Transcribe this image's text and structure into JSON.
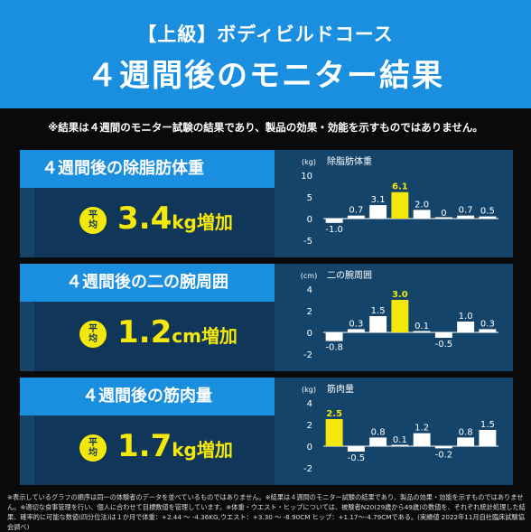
{
  "header": {
    "course": "【上級】ボディビルドコース",
    "title": "４週間後のモニター結果"
  },
  "disclaimer": "※結果は４週間のモニター試験の結果であり、製品の効果・効能を示すものではありません。",
  "avg_badge": {
    "line1": "平",
    "line2": "均"
  },
  "panels": [
    {
      "title": "４週間後の除脂肪体重",
      "avg_number": "3.4",
      "avg_unit": "kg",
      "avg_tail": "増加"
    },
    {
      "title": "４週間後の二の腕周囲",
      "avg_number": "1.2",
      "avg_unit": "cm",
      "avg_tail": "増加"
    },
    {
      "title": "４週間後の筋肉量",
      "avg_number": "1.7",
      "avg_unit": "kg",
      "avg_tail": "増加"
    }
  ],
  "colors": {
    "header_blue": "#1a8fe0",
    "panel_dark": "#14446a",
    "highlight_yellow": "#f4e80a",
    "bar_white": "#ffffff"
  },
  "chart_data": [
    {
      "type": "bar",
      "title": "除脂肪体重",
      "unit": "(kg)",
      "yticks": [
        "10",
        "5",
        "0",
        "-5"
      ],
      "ylim": [
        -5,
        10
      ],
      "values": [
        -1.0,
        0.7,
        3.1,
        6.1,
        2.0,
        0,
        0.7,
        0.5
      ],
      "labels": [
        "-1.0",
        "0.7",
        "3.1",
        "6.1",
        "2.0",
        "0",
        "0.7",
        "0.5"
      ],
      "highlight_index": 3
    },
    {
      "type": "bar",
      "title": "二の腕周囲",
      "unit": "(cm)",
      "yticks": [
        "4",
        "2",
        "0",
        "-2"
      ],
      "ylim": [
        -2,
        4
      ],
      "values": [
        -0.8,
        0.3,
        1.5,
        3.0,
        0.1,
        -0.5,
        1.0,
        0.3
      ],
      "labels": [
        "-0.8",
        "0.3",
        "1.5",
        "3.0",
        "0.1",
        "-0.5",
        "1.0",
        "0.3"
      ],
      "highlight_index": 3
    },
    {
      "type": "bar",
      "title": "筋肉量",
      "unit": "(kg)",
      "yticks": [
        "4",
        "2",
        "0",
        "-2"
      ],
      "ylim": [
        -2,
        4
      ],
      "values": [
        2.5,
        -0.5,
        0.8,
        0.1,
        1.2,
        -0.2,
        0.8,
        1.5
      ],
      "labels": [
        "2.5",
        "-0.5",
        "0.8",
        "0.1",
        "1.2",
        "-0.2",
        "0.8",
        "1.5"
      ],
      "highlight_index": 0
    }
  ],
  "footnote": "※表示しているグラフの順序は同一の体験者のデータを並べているものではありません。※結果は４週間のモニター試験の結果であり、製品の効果・効能を示すものではありません。※適切な食事管理を行い、個人に合わせて目標数値を管理しています。※体重・ウエスト・ヒップについては、被験者N20(29歳から49歳)の数値を、それぞれ統計処理した結果、確率的に可能な数値(四分位法)は１か月で体重：+2.44 〜 -4.36KG,ウエスト：+3.30 〜 -8.90CM ヒップ：+1.17〜-4.79CMである。(実績値 2022年11月自社臨床試験協会調べ)"
}
